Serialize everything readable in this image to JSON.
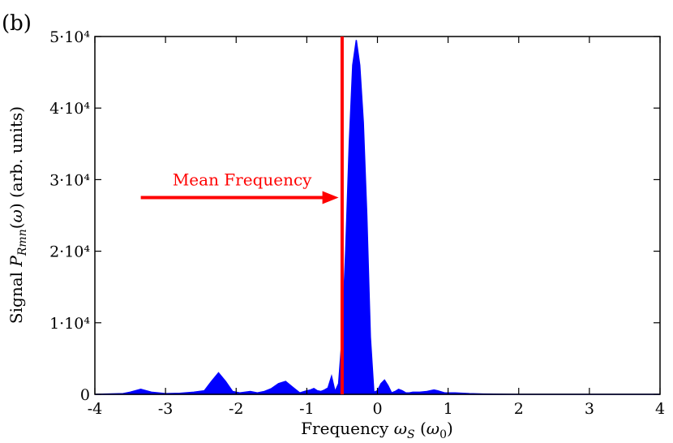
{
  "panel_label": "(b)",
  "chart_data": {
    "type": "area",
    "title": "",
    "xlabel": "Frequency ω_S (ω_0)",
    "ylabel": "Signal P_Rmn(ω) (arb. units)",
    "xlim": [
      -4,
      4
    ],
    "ylim": [
      0,
      50000
    ],
    "xticks": [
      -4,
      -3,
      -2,
      -1,
      0,
      1,
      2,
      3,
      4
    ],
    "xtick_labels": [
      "-4",
      "-3",
      "-2",
      "-1",
      "0",
      "1",
      "2",
      "3",
      "4"
    ],
    "yticks": [
      0,
      10000,
      20000,
      30000,
      40000,
      50000
    ],
    "ytick_labels": [
      "0",
      "1·10⁴",
      "2·10⁴",
      "3·10⁴",
      "4·10⁴",
      "5·10⁴"
    ],
    "grid": false,
    "legend": "none",
    "series": [
      {
        "color": "#0000ff",
        "filled": true,
        "x": [
          -4.0,
          -3.6,
          -3.5,
          -3.35,
          -3.2,
          -3.0,
          -2.8,
          -2.6,
          -2.45,
          -2.35,
          -2.25,
          -2.15,
          -2.05,
          -1.95,
          -1.8,
          -1.7,
          -1.6,
          -1.5,
          -1.4,
          -1.3,
          -1.2,
          -1.1,
          -1.0,
          -0.95,
          -0.9,
          -0.85,
          -0.8,
          -0.75,
          -0.7,
          -0.65,
          -0.6,
          -0.55,
          -0.5,
          -0.45,
          -0.4,
          -0.35,
          -0.3,
          -0.25,
          -0.2,
          -0.15,
          -0.1,
          -0.05,
          0.0,
          0.05,
          0.1,
          0.15,
          0.2,
          0.25,
          0.3,
          0.35,
          0.4,
          0.45,
          0.5,
          0.6,
          0.7,
          0.8,
          0.85,
          0.95,
          1.1,
          1.3,
          1.5,
          2.0,
          3.0,
          4.0
        ],
        "y": [
          0,
          100,
          300,
          700,
          300,
          100,
          150,
          300,
          500,
          1800,
          3000,
          1800,
          400,
          200,
          400,
          200,
          400,
          800,
          1500,
          1800,
          1000,
          200,
          500,
          600,
          800,
          500,
          400,
          600,
          900,
          2500,
          400,
          1500,
          8000,
          20000,
          35000,
          46000,
          49500,
          46000,
          38000,
          25000,
          8000,
          300,
          500,
          1500,
          2000,
          1200,
          200,
          400,
          700,
          500,
          200,
          200,
          300,
          300,
          400,
          600,
          500,
          200,
          200,
          100,
          50,
          0,
          0,
          0
        ]
      }
    ],
    "annotations": [
      {
        "text": "Mean Frequency",
        "x": -2.9,
        "y": 30000,
        "color": "#ff0000"
      }
    ],
    "vlines": [
      {
        "x": -0.5,
        "color": "#ff0000"
      }
    ],
    "arrows": [
      {
        "from": [
          -3.35,
          27500
        ],
        "to": [
          -0.55,
          27500
        ],
        "color": "#ff0000"
      }
    ]
  }
}
